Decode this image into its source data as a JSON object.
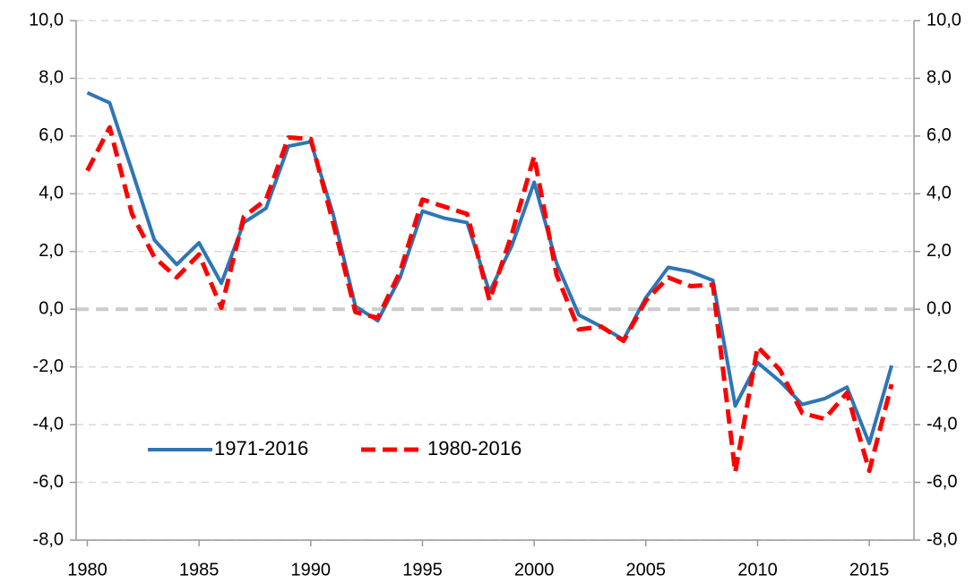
{
  "chart_data": {
    "type": "line",
    "x": [
      1980,
      1981,
      1982,
      1983,
      1984,
      1985,
      1986,
      1987,
      1988,
      1989,
      1990,
      1991,
      1992,
      1993,
      1994,
      1995,
      1996,
      1997,
      1998,
      1999,
      2000,
      2001,
      2002,
      2003,
      2004,
      2005,
      2006,
      2007,
      2008,
      2009,
      2010,
      2011,
      2012,
      2013,
      2014,
      2015,
      2016
    ],
    "series": [
      {
        "name": "1971-2016",
        "color": "#2e75b6",
        "dash": false,
        "values": [
          7.5,
          7.15,
          4.8,
          2.4,
          1.55,
          2.3,
          0.9,
          3.0,
          3.5,
          5.65,
          5.8,
          3.3,
          0.1,
          -0.4,
          1.1,
          3.4,
          3.15,
          3.0,
          0.6,
          2.2,
          4.4,
          1.6,
          -0.2,
          -0.6,
          -1.05,
          0.4,
          1.45,
          1.3,
          1.0,
          -3.35,
          -1.85,
          -2.5,
          -3.3,
          -3.1,
          -2.7,
          -4.65,
          -1.95
        ]
      },
      {
        "name": "1980-2016",
        "color": "#ff0000",
        "dash": true,
        "values": [
          4.8,
          6.3,
          3.3,
          1.8,
          1.1,
          1.9,
          0.05,
          3.2,
          3.8,
          5.95,
          5.9,
          3.0,
          -0.1,
          -0.3,
          1.3,
          3.8,
          3.55,
          3.3,
          0.3,
          2.6,
          5.3,
          1.2,
          -0.7,
          -0.6,
          -1.1,
          0.3,
          1.1,
          0.8,
          0.85,
          -5.65,
          -1.3,
          -2.1,
          -3.6,
          -3.8,
          -2.9,
          -5.6,
          -2.6
        ]
      }
    ],
    "xlim": [
      1979.5,
      2017
    ],
    "xticks": [
      1980,
      1985,
      1990,
      1995,
      2000,
      2005,
      2010,
      2015
    ],
    "ylim": [
      -8,
      10
    ],
    "yticks": [
      {
        "value": -8,
        "label": "-8,0"
      },
      {
        "value": -6,
        "label": "-6,0"
      },
      {
        "value": -4,
        "label": "-4,0"
      },
      {
        "value": -2,
        "label": "-2,0"
      },
      {
        "value": 0,
        "label": "0,0"
      },
      {
        "value": 2,
        "label": "2,0"
      },
      {
        "value": 4,
        "label": "4,0"
      },
      {
        "value": 6,
        "label": "6,0"
      },
      {
        "value": 8,
        "label": "8,0"
      },
      {
        "value": 10,
        "label": "10,0"
      }
    ],
    "y2lim": [
      -8,
      10
    ],
    "y2ticks": [
      {
        "value": -8,
        "label": "-8,0"
      },
      {
        "value": -6,
        "label": "-6,0"
      },
      {
        "value": -4,
        "label": "-4,0"
      },
      {
        "value": -2,
        "label": "-2,0"
      },
      {
        "value": 0,
        "label": "0,0"
      },
      {
        "value": 2,
        "label": "2,0"
      },
      {
        "value": 4,
        "label": "4,0"
      },
      {
        "value": 6,
        "label": "6,0"
      },
      {
        "value": 8,
        "label": "8,0"
      },
      {
        "value": 10,
        "label": "10,0"
      }
    ],
    "grid": true,
    "legend": "lower left"
  }
}
